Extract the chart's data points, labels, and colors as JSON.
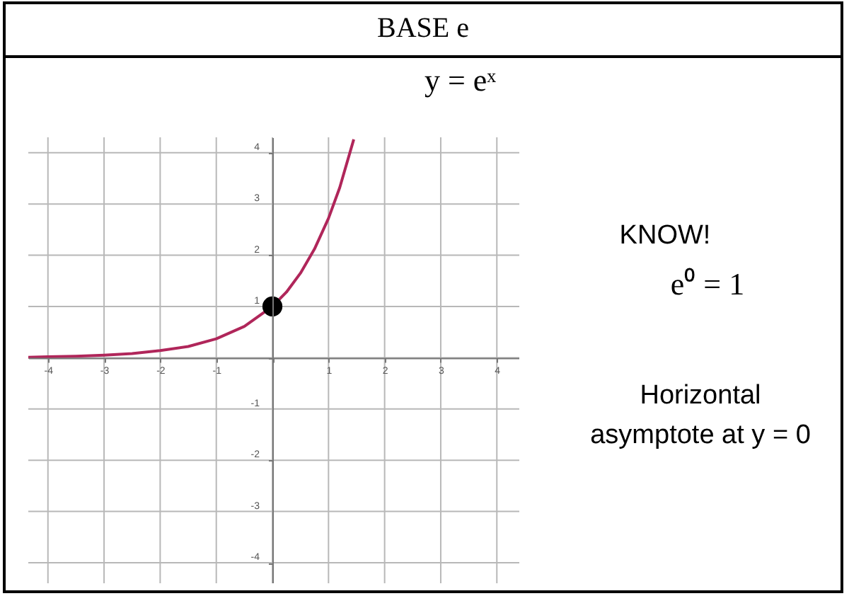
{
  "chart_data": {
    "type": "line",
    "title": "BASE e",
    "annotations": [
      "y = eˣ",
      "KNOW!",
      "e⁰ = 1",
      "Horizontal asymptote at y = 0"
    ],
    "xlim": [
      -4.35,
      4.4
    ],
    "ylim": [
      -4.4,
      4.3
    ],
    "xticks": [
      -4,
      -3,
      -2,
      -1,
      {
        "value": 0,
        "label": null
      },
      1,
      2,
      3,
      4
    ],
    "yticks": [
      -4,
      -3,
      -2,
      -1,
      {
        "value": 0,
        "label": null
      },
      1,
      2,
      3,
      4
    ],
    "grid": true,
    "series": [
      {
        "type": "line",
        "color": "#b0265a",
        "x": [
          -4.35,
          -4,
          -3.5,
          -3,
          -2.5,
          -2,
          -1.5,
          -1,
          -0.5,
          0,
          0.25,
          0.5,
          0.75,
          1,
          1.2,
          1.45
        ],
        "values": [
          0.01,
          0.02,
          0.03,
          0.05,
          0.08,
          0.14,
          0.22,
          0.37,
          0.61,
          1,
          1.28,
          1.65,
          2.12,
          2.72,
          3.32,
          4.26
        ]
      },
      {
        "type": "scatter",
        "color": "#000000",
        "marker": "circle",
        "x": [
          0
        ],
        "values": [
          1
        ]
      }
    ]
  }
}
